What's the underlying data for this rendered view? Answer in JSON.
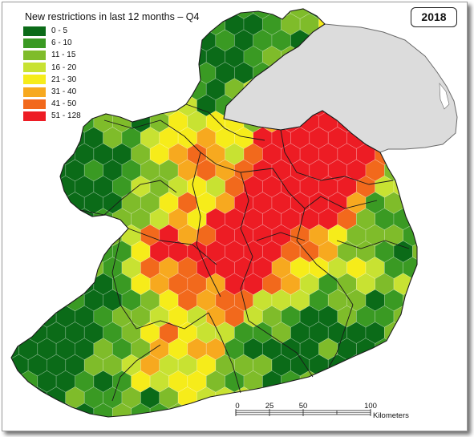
{
  "legend": {
    "title": "New restrictions in last 12 months – Q4",
    "classes": [
      {
        "label": "0 - 5",
        "color": "#0b6b18"
      },
      {
        "label": "6 - 10",
        "color": "#3a9a23"
      },
      {
        "label": "11 - 15",
        "color": "#7fbc2a"
      },
      {
        "label": "16 - 20",
        "color": "#c8e232"
      },
      {
        "label": "21 - 30",
        "color": "#f6ec1a"
      },
      {
        "label": "31 - 40",
        "color": "#f7a91f"
      },
      {
        "label": "41 - 50",
        "color": "#f2691c"
      },
      {
        "label": "51 - 128",
        "color": "#ed1c24"
      }
    ]
  },
  "year": "2018",
  "scale_bar": {
    "ticks": [
      "0",
      "25",
      "50",
      "100"
    ],
    "unit": "Kilometers"
  },
  "colors": {
    "northern_ireland": "#dcdcdc",
    "county_border": "#1a1a1a",
    "hex_border": "#ffffff"
  }
}
